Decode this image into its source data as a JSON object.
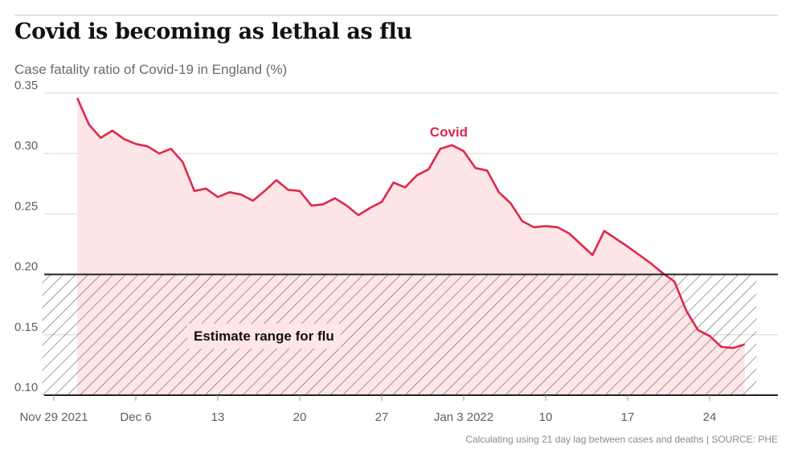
{
  "title": "Covid is becoming as lethal as flu",
  "subtitle": "Case fatality ratio of Covid-19 in England (%)",
  "footnote": "Calculating using 21 day lag between cases and deaths | SOURCE: PHE",
  "colors": {
    "covid_line": "#e0284a",
    "covid_fill": "#fde5e8",
    "flu_band_hatch": "#444444",
    "grid": "#e2e2e2",
    "axis": "#222222"
  },
  "chart_data": {
    "type": "area",
    "title": "Covid is becoming as lethal as flu",
    "ylabel": "Case fatality ratio of Covid-19 in England (%)",
    "xlabel": "",
    "ylim": [
      0.1,
      0.35
    ],
    "yticks": [
      0.35,
      0.3,
      0.25,
      0.2,
      0.15,
      0.1
    ],
    "ytick_labels": [
      "0.35",
      "0.30",
      "0.25",
      "0.20",
      "0.15",
      "0.10"
    ],
    "x_start_day": 0,
    "x_end_day": 61,
    "xticks": [
      {
        "day": 0,
        "label": "Nov 29 2021"
      },
      {
        "day": 7,
        "label": "Dec 6"
      },
      {
        "day": 14,
        "label": "13"
      },
      {
        "day": 21,
        "label": "20"
      },
      {
        "day": 28,
        "label": "27"
      },
      {
        "day": 35,
        "label": "Jan 3 2022"
      },
      {
        "day": 42,
        "label": "10"
      },
      {
        "day": 49,
        "label": "17"
      },
      {
        "day": 56,
        "label": "24"
      }
    ],
    "series": [
      {
        "name": "Covid",
        "label_day": 34,
        "label_value": 0.318,
        "x": [
          2,
          3,
          4,
          5,
          6,
          7,
          8,
          9,
          10,
          11,
          12,
          13,
          14,
          15,
          16,
          17,
          18,
          19,
          20,
          21,
          22,
          23,
          24,
          25,
          26,
          27,
          28,
          29,
          30,
          31,
          32,
          33,
          34,
          35,
          36,
          37,
          38,
          39,
          40,
          41,
          42,
          43,
          44,
          45,
          46,
          47,
          49,
          50,
          51,
          52,
          53,
          54,
          55,
          56,
          57,
          58,
          59
        ],
        "values": [
          0.346,
          0.324,
          0.313,
          0.319,
          0.312,
          0.308,
          0.306,
          0.3,
          0.304,
          0.293,
          0.269,
          0.271,
          0.264,
          0.268,
          0.266,
          0.261,
          0.269,
          0.278,
          0.27,
          0.269,
          0.257,
          0.258,
          0.263,
          0.257,
          0.249,
          0.255,
          0.26,
          0.276,
          0.272,
          0.282,
          0.287,
          0.304,
          0.307,
          0.302,
          0.288,
          0.286,
          0.268,
          0.259,
          0.244,
          0.239,
          0.24,
          0.239,
          0.234,
          0.225,
          0.216,
          0.236,
          0.223,
          0.216,
          0.209,
          0.201,
          0.194,
          0.17,
          0.154,
          0.149,
          0.14,
          0.139,
          0.142
        ]
      }
    ],
    "bands": [
      {
        "name": "Estimate range for flu",
        "from": 0.1,
        "to": 0.2,
        "from_day": -1,
        "to_day": 60
      }
    ]
  }
}
